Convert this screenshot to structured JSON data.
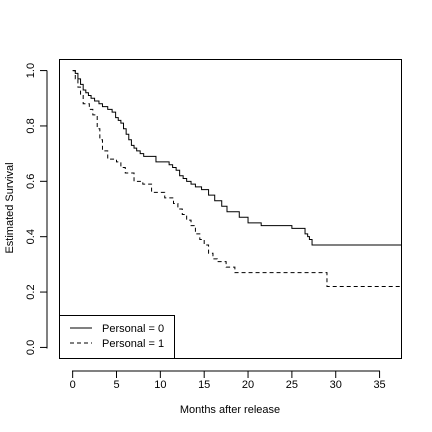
{
  "chart_data": {
    "type": "line",
    "xlabel": "Months after release",
    "ylabel": "Estimated Survival",
    "xlim": [
      -1.5,
      37.5
    ],
    "ylim": [
      -0.04,
      1.04
    ],
    "xticks": [
      0,
      5,
      10,
      15,
      20,
      25,
      30,
      35
    ],
    "yticks": [
      0.0,
      0.2,
      0.4,
      0.6,
      0.8,
      1.0
    ],
    "xtick_labels": [
      "0",
      "5",
      "10",
      "15",
      "20",
      "25",
      "30",
      "35"
    ],
    "ytick_labels": [
      "0.0",
      "0.2",
      "0.4",
      "0.6",
      "0.8",
      "1.0"
    ],
    "step": true,
    "grid": false,
    "legend_position": "bottom-left",
    "series": [
      {
        "name": "Personal = 0",
        "line_style": "solid",
        "color": "#000000",
        "x": [
          0,
          0.3,
          0.6,
          0.9,
          1.2,
          1.5,
          1.8,
          2.1,
          2.5,
          3.0,
          3.4,
          4.0,
          4.5,
          4.9,
          5.2,
          5.5,
          5.8,
          6.1,
          6.4,
          6.7,
          7.0,
          7.3,
          7.7,
          8.1,
          9.5,
          11.0,
          11.4,
          11.8,
          12.2,
          12.6,
          13.0,
          13.5,
          14.0,
          14.7,
          15.5,
          16.2,
          17.0,
          17.6,
          19.0,
          20.0,
          21.5,
          25.0,
          26.5,
          26.8,
          27.0,
          27.3,
          37.5
        ],
        "y": [
          1.0,
          0.99,
          0.97,
          0.95,
          0.93,
          0.92,
          0.91,
          0.9,
          0.89,
          0.88,
          0.87,
          0.86,
          0.85,
          0.83,
          0.82,
          0.81,
          0.79,
          0.77,
          0.75,
          0.73,
          0.72,
          0.71,
          0.7,
          0.69,
          0.67,
          0.66,
          0.65,
          0.64,
          0.62,
          0.61,
          0.6,
          0.59,
          0.58,
          0.57,
          0.55,
          0.53,
          0.51,
          0.49,
          0.47,
          0.45,
          0.44,
          0.43,
          0.41,
          0.4,
          0.39,
          0.37,
          0.37
        ]
      },
      {
        "name": "Personal = 1",
        "line_style": "dashed",
        "color": "#000000",
        "x": [
          0,
          0.3,
          0.6,
          0.9,
          1.2,
          1.9,
          2.3,
          2.8,
          3.1,
          3.4,
          4.0,
          5.0,
          5.5,
          6.0,
          7.0,
          8.0,
          9.0,
          10.5,
          11.5,
          12.0,
          12.5,
          13.0,
          13.5,
          14.0,
          14.5,
          15.0,
          15.5,
          16.0,
          16.5,
          17.5,
          18.5,
          19.0,
          29.0,
          37.5
        ],
        "y": [
          1.0,
          0.97,
          0.94,
          0.91,
          0.88,
          0.86,
          0.84,
          0.79,
          0.75,
          0.71,
          0.68,
          0.67,
          0.65,
          0.63,
          0.6,
          0.59,
          0.56,
          0.54,
          0.52,
          0.5,
          0.48,
          0.46,
          0.44,
          0.41,
          0.39,
          0.37,
          0.34,
          0.32,
          0.31,
          0.29,
          0.27,
          0.27,
          0.22,
          0.22
        ]
      }
    ]
  }
}
